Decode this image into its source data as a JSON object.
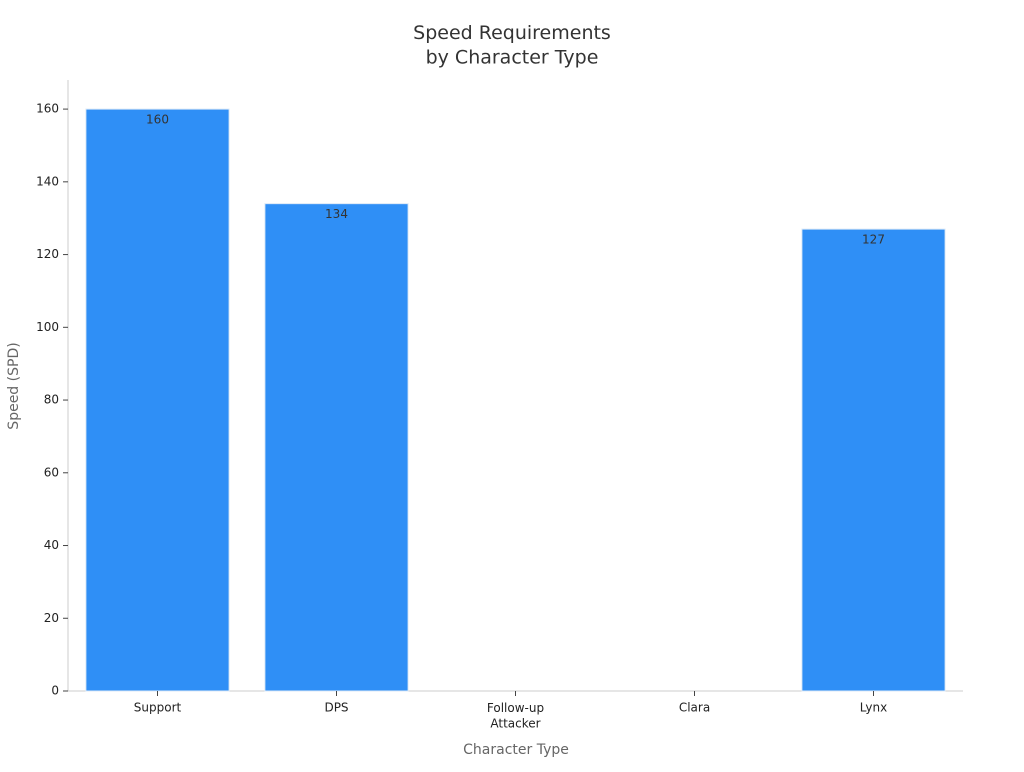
{
  "chart_data": {
    "type": "bar",
    "title": "Speed Requirements\nby Character Type",
    "x_label": "Character Type",
    "y_label": "Speed (SPD)",
    "categories": [
      "Support",
      "DPS",
      "Follow-up\nAttacker",
      "Clara",
      "Lynx"
    ],
    "values": [
      160,
      134,
      0,
      0,
      127
    ],
    "color": "#2f8ff6",
    "ylim": [
      0,
      168
    ],
    "yticks": [
      0,
      20,
      40,
      60,
      80,
      100,
      120,
      140,
      160
    ],
    "grid": false
  }
}
